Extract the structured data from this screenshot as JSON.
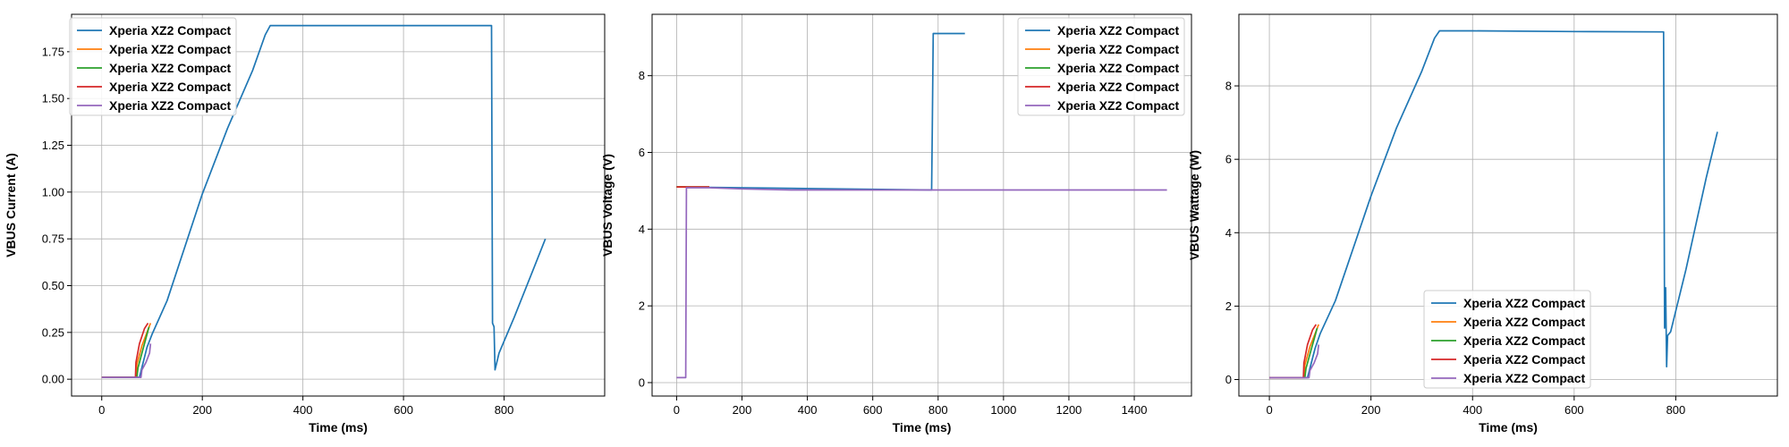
{
  "chart_data": [
    {
      "type": "line",
      "xlabel": "Time (ms)",
      "ylabel": "VBUS Current (A)",
      "xlim": [
        -60,
        1000
      ],
      "ylim": [
        -0.09,
        1.95
      ],
      "xticks": [
        0,
        200,
        400,
        600,
        800
      ],
      "yticks": [
        0.0,
        0.25,
        0.5,
        0.75,
        1.0,
        1.25,
        1.5,
        1.75
      ],
      "ytick_labels": [
        "0.00",
        "0.25",
        "0.50",
        "0.75",
        "1.00",
        "1.25",
        "1.50",
        "1.75"
      ],
      "grid": true,
      "legend_position": "upper-left",
      "series": [
        {
          "name": "Xperia XZ2 Compact",
          "color": "#1f77b4",
          "x": [
            0,
            75,
            90,
            100,
            130,
            200,
            250,
            300,
            325,
            335,
            400,
            600,
            775,
            777,
            780,
            782,
            790,
            820,
            860,
            882
          ],
          "y": [
            0.01,
            0.01,
            0.17,
            0.24,
            0.42,
            0.99,
            1.34,
            1.65,
            1.84,
            1.89,
            1.89,
            1.89,
            1.89,
            0.3,
            0.28,
            0.05,
            0.14,
            0.33,
            0.6,
            0.75
          ]
        },
        {
          "name": "Xperia XZ2 Compact",
          "color": "#ff7f0e",
          "x": [
            0,
            68,
            70,
            80,
            90,
            97
          ],
          "y": [
            0.01,
            0.01,
            0.08,
            0.18,
            0.25,
            0.3
          ]
        },
        {
          "name": "Xperia XZ2 Compact",
          "color": "#2ca02c",
          "x": [
            0,
            70,
            72,
            80,
            88,
            94
          ],
          "y": [
            0.01,
            0.01,
            0.06,
            0.14,
            0.22,
            0.28
          ]
        },
        {
          "name": "Xperia XZ2 Compact",
          "color": "#d62728",
          "x": [
            0,
            67,
            68,
            75,
            85,
            92
          ],
          "y": [
            0.01,
            0.01,
            0.09,
            0.19,
            0.27,
            0.3
          ]
        },
        {
          "name": "Xperia XZ2 Compact",
          "color": "#9467bd",
          "x": [
            0,
            78,
            80,
            88,
            95,
            97
          ],
          "y": [
            0.01,
            0.01,
            0.05,
            0.09,
            0.14,
            0.19
          ]
        }
      ]
    },
    {
      "type": "line",
      "xlabel": "Time (ms)",
      "ylabel": "VBUS Voltage (V)",
      "xlim": [
        -75,
        1575
      ],
      "ylim": [
        -0.35,
        9.6
      ],
      "xticks": [
        0,
        200,
        400,
        600,
        800,
        1000,
        1200,
        1400
      ],
      "yticks": [
        0,
        2,
        4,
        6,
        8
      ],
      "ytick_labels": [
        "0",
        "2",
        "4",
        "6",
        "8"
      ],
      "grid": true,
      "legend_position": "upper-right",
      "series": [
        {
          "name": "Xperia XZ2 Compact",
          "color": "#1f77b4",
          "x": [
            0,
            780,
            782,
            785,
            850,
            882
          ],
          "y": [
            5.1,
            5.02,
            6.5,
            9.1,
            9.1,
            9.1
          ]
        },
        {
          "name": "Xperia XZ2 Compact",
          "color": "#ff7f0e",
          "x": [
            0,
            100
          ],
          "y": [
            5.1,
            5.1
          ]
        },
        {
          "name": "Xperia XZ2 Compact",
          "color": "#2ca02c",
          "x": [
            0,
            100
          ],
          "y": [
            5.1,
            5.1
          ]
        },
        {
          "name": "Xperia XZ2 Compact",
          "color": "#d62728",
          "x": [
            0,
            100
          ],
          "y": [
            5.1,
            5.1
          ]
        },
        {
          "name": "Xperia XZ2 Compact",
          "color": "#9467bd",
          "x": [
            0,
            28,
            30,
            100,
            200,
            350,
            800,
            1000,
            1500
          ],
          "y": [
            0.13,
            0.13,
            5.08,
            5.08,
            5.05,
            5.02,
            5.02,
            5.02,
            5.02
          ]
        }
      ]
    },
    {
      "type": "line",
      "xlabel": "Time (ms)",
      "ylabel": "VBUS Wattage (W)",
      "xlim": [
        -60,
        1000
      ],
      "ylim": [
        -0.45,
        9.95
      ],
      "xticks": [
        0,
        200,
        400,
        600,
        800
      ],
      "yticks": [
        0,
        2,
        4,
        6,
        8
      ],
      "ytick_labels": [
        "0",
        "2",
        "4",
        "6",
        "8"
      ],
      "grid": true,
      "legend_position": "lower-center",
      "series": [
        {
          "name": "Xperia XZ2 Compact",
          "color": "#1f77b4",
          "x": [
            0,
            75,
            90,
            100,
            130,
            200,
            250,
            300,
            325,
            335,
            400,
            600,
            776,
            778,
            780,
            782,
            784,
            790,
            820,
            860,
            882
          ],
          "y": [
            0.05,
            0.05,
            0.85,
            1.25,
            2.15,
            5.0,
            6.85,
            8.4,
            9.3,
            9.5,
            9.5,
            9.48,
            9.47,
            1.4,
            2.5,
            0.35,
            1.2,
            1.3,
            3.0,
            5.5,
            6.75
          ]
        },
        {
          "name": "Xperia XZ2 Compact",
          "color": "#ff7f0e",
          "x": [
            0,
            68,
            70,
            80,
            90,
            97
          ],
          "y": [
            0.05,
            0.05,
            0.4,
            0.9,
            1.25,
            1.5
          ]
        },
        {
          "name": "Xperia XZ2 Compact",
          "color": "#2ca02c",
          "x": [
            0,
            70,
            72,
            80,
            88,
            94
          ],
          "y": [
            0.05,
            0.05,
            0.3,
            0.7,
            1.1,
            1.4
          ]
        },
        {
          "name": "Xperia XZ2 Compact",
          "color": "#d62728",
          "x": [
            0,
            67,
            68,
            75,
            85,
            92
          ],
          "y": [
            0.05,
            0.05,
            0.45,
            0.95,
            1.35,
            1.5
          ]
        },
        {
          "name": "Xperia XZ2 Compact",
          "color": "#9467bd",
          "x": [
            0,
            78,
            80,
            88,
            95,
            97
          ],
          "y": [
            0.05,
            0.05,
            0.25,
            0.45,
            0.7,
            0.95
          ]
        }
      ]
    }
  ]
}
